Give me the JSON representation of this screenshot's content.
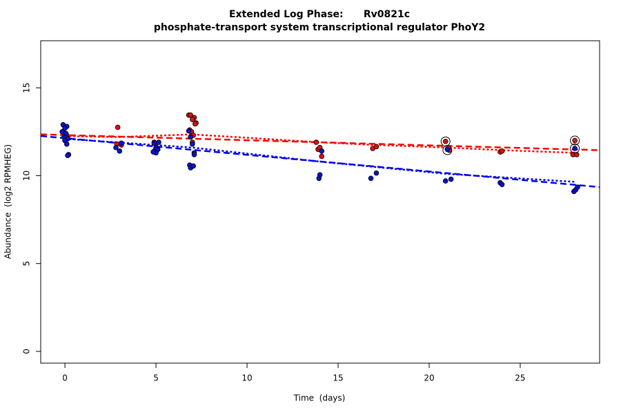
{
  "chart_data": {
    "type": "scatter",
    "title": "Extended Log Phase:      Rv0821c",
    "subtitle": "phosphate-transport system transcriptional regulator PhoY2",
    "x_label": "Time  (days)",
    "y_label": "Abundance  (log2 RPMHEG)",
    "xlim": [
      -1.33,
      29.36
    ],
    "ylim": [
      -0.67,
      17.68
    ],
    "xticks": [
      0,
      5,
      10,
      15,
      20,
      25
    ],
    "yticks": [
      0,
      5,
      10,
      15
    ],
    "grid": false,
    "series": [
      {
        "color": "#dd1111",
        "x": [
          0.0,
          0.1,
          -0.1,
          0.05,
          2.9,
          2.85,
          3.1,
          4.9,
          5.0,
          5.1,
          4.95,
          6.8,
          6.9,
          7.1,
          7.0,
          7.2,
          7.15,
          6.85,
          6.95,
          7.05,
          6.9,
          7.0,
          13.8,
          13.9,
          14.0,
          14.1,
          16.9,
          17.1,
          20.9,
          21.0,
          21.1,
          23.9,
          24.0,
          27.9,
          28.0,
          28.1
        ],
        "values": [
          12.4,
          12.3,
          12.5,
          12.2,
          12.75,
          11.8,
          11.75,
          11.9,
          11.8,
          11.5,
          11.45,
          13.45,
          13.45,
          13.3,
          13.2,
          13.0,
          12.95,
          12.6,
          12.5,
          12.3,
          12.2,
          11.9,
          11.9,
          11.5,
          11.6,
          11.1,
          11.55,
          11.65,
          11.95,
          11.5,
          11.45,
          11.35,
          11.4,
          11.2,
          12.0,
          11.2
        ]
      },
      {
        "color": "#0a14c8",
        "x": [
          -0.1,
          0.1,
          0.0,
          -0.15,
          0.05,
          -0.05,
          0.15,
          0.0,
          0.1,
          0.2,
          0.15,
          2.8,
          3.0,
          3.1,
          4.9,
          5.0,
          5.1,
          5.0,
          4.85,
          5.15,
          6.8,
          6.9,
          7.0,
          7.1,
          7.1,
          6.85,
          6.9,
          7.05,
          14.0,
          13.95,
          14.1,
          16.8,
          17.1,
          20.9,
          21.0,
          21.2,
          23.9,
          24.0,
          27.95,
          28.05,
          28.15,
          28.0
        ],
        "values": [
          12.9,
          12.8,
          12.7,
          12.5,
          12.4,
          12.2,
          12.1,
          12.0,
          11.8,
          11.2,
          11.15,
          11.6,
          11.4,
          11.85,
          11.85,
          11.6,
          11.5,
          11.3,
          11.35,
          11.9,
          12.55,
          12.2,
          11.8,
          11.3,
          11.2,
          10.6,
          10.45,
          10.55,
          10.05,
          9.85,
          11.4,
          9.85,
          10.15,
          9.7,
          11.5,
          9.8,
          9.6,
          9.5,
          9.1,
          9.2,
          9.35,
          11.55
        ]
      }
    ],
    "rings": {
      "x": [
        20.9,
        21.0,
        28.0,
        28.0
      ],
      "values": [
        11.95,
        11.45,
        12.0,
        11.55
      ]
    },
    "trend_lines": [
      {
        "color": "#ff0000",
        "style": "dashed",
        "x": [
          -1.33,
          29.36
        ],
        "values": [
          12.35,
          11.45
        ]
      },
      {
        "color": "#ff0000",
        "style": "dotted",
        "x": [
          0,
          3,
          7,
          14,
          17,
          21,
          24,
          28
        ],
        "values": [
          12.25,
          12.2,
          12.35,
          11.9,
          11.75,
          11.6,
          11.45,
          11.3
        ]
      },
      {
        "color": "#0000ee",
        "style": "dashed",
        "x": [
          -1.33,
          29.36
        ],
        "values": [
          12.26,
          9.35
        ]
      },
      {
        "color": "#0000ee",
        "style": "dotted",
        "x": [
          0,
          7,
          14,
          21,
          28
        ],
        "values": [
          12.1,
          11.6,
          10.8,
          10.1,
          9.65
        ]
      }
    ]
  }
}
